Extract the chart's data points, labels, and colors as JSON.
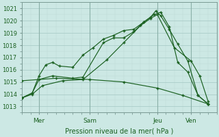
{
  "bg_color": "#cce8e4",
  "grid_color_major": "#aaccc8",
  "grid_color_minor": "#bddad6",
  "line_color": "#1a6020",
  "marker_color": "#1a6020",
  "ylim": [
    1012.5,
    1021.5
  ],
  "yticks": [
    1013,
    1014,
    1015,
    1016,
    1017,
    1018,
    1019,
    1020,
    1021
  ],
  "xlabel": "Pression niveau de la mer( hPa )",
  "xlabel_color": "#1a6020",
  "tick_label_color": "#1a6020",
  "xtick_labels": [
    "Mer",
    "Sam",
    "Jeu",
    "Ven"
  ],
  "xtick_positions": [
    1,
    4,
    8,
    10
  ],
  "vline_positions": [
    1,
    4,
    8,
    10
  ],
  "xlim": [
    0,
    11.5
  ],
  "series": [
    {
      "x": [
        0.0,
        0.6,
        1.0,
        1.4,
        1.8,
        2.2,
        3.0,
        3.6,
        4.2,
        4.8,
        5.4,
        6.0,
        6.6,
        7.2,
        7.8,
        8.2,
        8.7,
        9.2,
        9.8,
        10.4,
        11.0
      ],
      "y": [
        1013.7,
        1014.1,
        1015.5,
        1016.4,
        1016.6,
        1016.3,
        1016.2,
        1017.2,
        1017.8,
        1018.5,
        1018.8,
        1019.2,
        1019.3,
        1019.9,
        1020.5,
        1020.7,
        1019.5,
        1016.6,
        1015.8,
        1013.9,
        1013.2
      ]
    },
    {
      "x": [
        0.0,
        0.6,
        1.0,
        1.8,
        3.0,
        3.6,
        4.8,
        5.4,
        6.0,
        6.6,
        7.2,
        7.6,
        7.9,
        8.2,
        8.7,
        9.2,
        9.8,
        10.4,
        11.0
      ],
      "y": [
        1013.7,
        1014.1,
        1015.2,
        1015.5,
        1015.3,
        1015.4,
        1018.2,
        1018.6,
        1018.6,
        1019.1,
        1019.9,
        1020.3,
        1020.8,
        1020.4,
        1019.3,
        1018.1,
        1016.7,
        1013.9,
        1013.2
      ]
    },
    {
      "x": [
        0.0,
        0.6,
        1.2,
        2.4,
        3.6,
        5.0,
        6.0,
        7.0,
        7.6,
        8.0,
        9.0,
        10.0,
        10.5,
        11.0
      ],
      "y": [
        1013.7,
        1014.0,
        1014.7,
        1015.1,
        1015.2,
        1016.8,
        1018.2,
        1019.6,
        1020.2,
        1020.5,
        1017.8,
        1016.7,
        1015.5,
        1013.4
      ]
    },
    {
      "x": [
        0.0,
        2.0,
        4.0,
        6.0,
        8.0,
        9.5,
        11.0
      ],
      "y": [
        1015.1,
        1015.3,
        1015.2,
        1015.0,
        1014.5,
        1013.9,
        1013.2
      ]
    }
  ]
}
